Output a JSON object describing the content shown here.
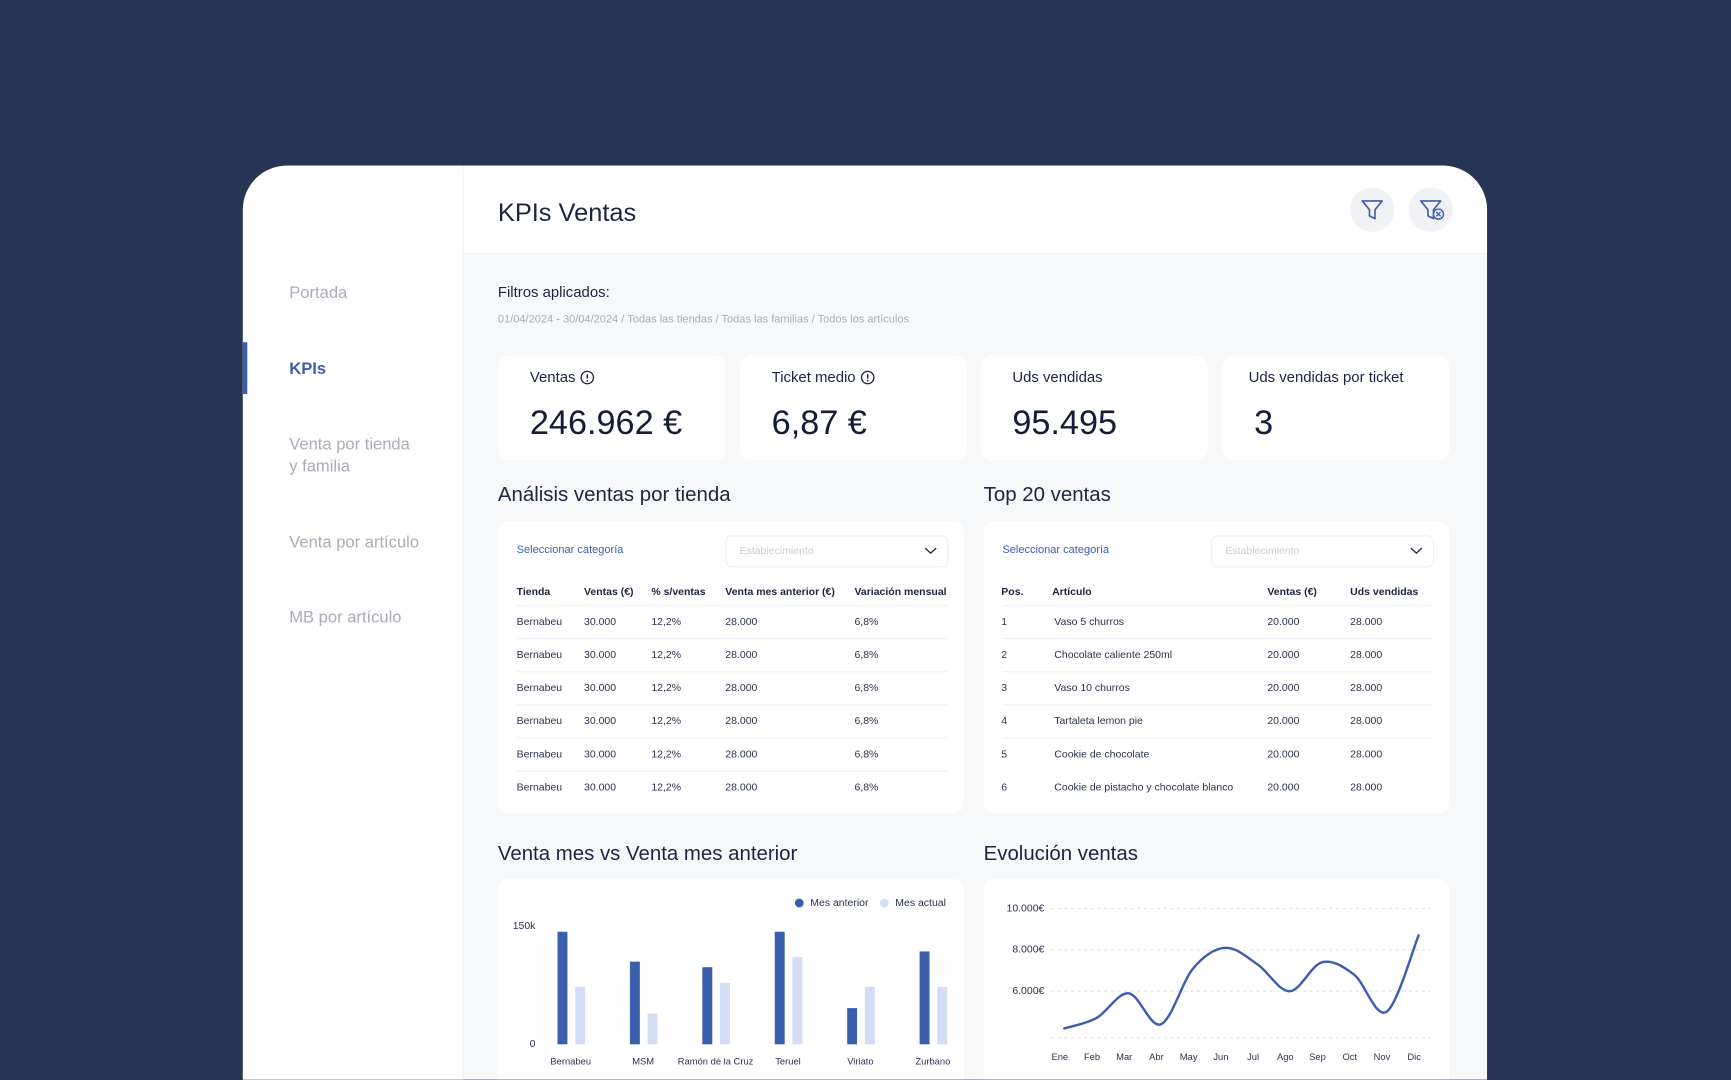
{
  "sidebar": {
    "items": [
      "Portada",
      "KPIs",
      "Venta por tienda y familia",
      "Venta por artículo",
      "MB por artículo"
    ],
    "active": 1
  },
  "header": {
    "title": "KPIs Ventas"
  },
  "filters": {
    "label": "Filtros aplicados:",
    "text": "01/04/2024 - 30/04/2024 / Todas las tiendas / Todas las familias / Todos los artículos"
  },
  "kpis": [
    {
      "label": "Ventas",
      "value": "246.962 €",
      "info": true
    },
    {
      "label": "Ticket medio",
      "value": "6,87 €",
      "info": true
    },
    {
      "label": "Uds vendidas",
      "value": "95.495",
      "info": false
    },
    {
      "label": "Uds vendidas por ticket",
      "value": "3",
      "info": false
    }
  ],
  "store_table": {
    "title": "Análisis ventas por tienda",
    "select_label": "Seleccionar categoría",
    "placeholder": "Establecimiento",
    "columns": [
      "Tienda",
      "Ventas (€)",
      "% s/ventas",
      "Venta mes anterior (€)",
      "Variación mensual"
    ],
    "rows": [
      [
        "Bernabeu",
        "30.000",
        "12,2%",
        "28.000",
        "6,8%"
      ],
      [
        "Bernabeu",
        "30.000",
        "12,2%",
        "28.000",
        "6,8%"
      ],
      [
        "Bernabeu",
        "30.000",
        "12,2%",
        "28.000",
        "6,8%"
      ],
      [
        "Bernabeu",
        "30.000",
        "12,2%",
        "28.000",
        "6,8%"
      ],
      [
        "Bernabeu",
        "30.000",
        "12,2%",
        "28.000",
        "6,8%"
      ],
      [
        "Bernabeu",
        "30.000",
        "12,2%",
        "28.000",
        "6,8%"
      ]
    ]
  },
  "top_table": {
    "title": "Top 20 ventas",
    "select_label": "Seleccionar categoría",
    "placeholder": "Establecimiento",
    "columns": [
      "Pos.",
      "Artículo",
      "Ventas (€)",
      "Uds vendidas"
    ],
    "rows": [
      [
        "1",
        "Vaso 5 churros",
        "20.000",
        "28.000"
      ],
      [
        "2",
        "Chocolate caliente 250ml",
        "20.000",
        "28.000"
      ],
      [
        "3",
        "Vaso 10 churros",
        "20.000",
        "28.000"
      ],
      [
        "4",
        "Tartaleta lemon pie",
        "20.000",
        "28.000"
      ],
      [
        "5",
        "Cookie de chocolate",
        "20.000",
        "28.000"
      ],
      [
        "6",
        "Cookie de pistacho y chocolate blanco",
        "20.000",
        "28.000"
      ]
    ]
  },
  "chart_data": [
    {
      "type": "bar",
      "title": "Venta mes vs Venta mes anterior",
      "categories": [
        "Bernabeu",
        "MSM",
        "Ramón de la Cruz",
        "Teruel",
        "Viriato",
        "Zurbano"
      ],
      "series": [
        {
          "name": "Mes anterior",
          "color": "#3b5fad",
          "values": [
            143000,
            105000,
            98000,
            143000,
            46000,
            118000
          ]
        },
        {
          "name": "Mes actual",
          "color": "#d3ddf6",
          "values": [
            73000,
            39000,
            78000,
            111000,
            73000,
            73000
          ]
        }
      ],
      "ylim": [
        0,
        150000
      ],
      "yticks": [
        0,
        {
          "value": 150000,
          "label": "150k"
        }
      ],
      "legend": "top-right"
    },
    {
      "type": "line",
      "title": "Evolución ventas",
      "categories": [
        "Ene",
        "Feb",
        "Mar",
        "Abr",
        "May",
        "Jun",
        "Jul",
        "Ago",
        "Sep",
        "Oct",
        "Nov",
        "Dic"
      ],
      "values": [
        4200,
        4700,
        5900,
        4400,
        7100,
        8100,
        7300,
        6000,
        7400,
        6800,
        5000,
        8700
      ],
      "color": "#3b5fad",
      "ylim": [
        3750,
        10000
      ],
      "yticks": [
        {
          "value": 6000,
          "label": "6.000€"
        },
        {
          "value": 8000,
          "label": "8.000€"
        },
        {
          "value": 10000,
          "label": "10.000€"
        }
      ],
      "grid": true
    }
  ]
}
